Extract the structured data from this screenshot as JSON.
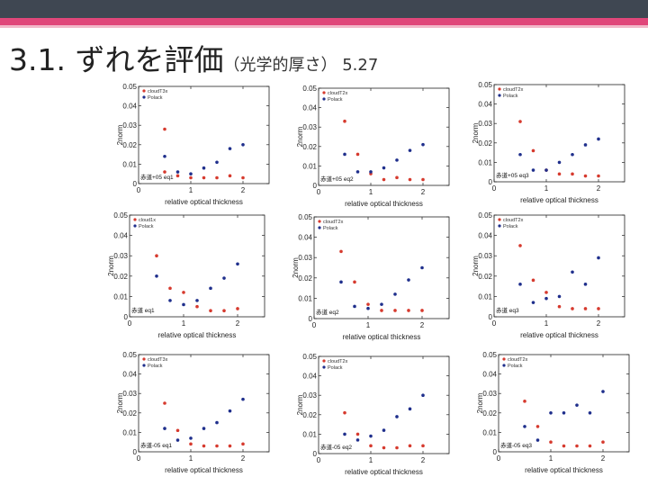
{
  "slide": {
    "title_main": "3.1. ずれを評価",
    "title_sub": "（光学的厚さ） 5.27"
  },
  "colors": {
    "red_series": "#d63a2e",
    "blue_series": "#1f2f8c",
    "header_dark": "#3f4752",
    "header_pink": "#e0477a"
  },
  "chart_data": [
    {
      "type": "scatter",
      "panel_label": "赤道+05 eq1",
      "xlabel": "relative optical thickness",
      "ylabel": "2norm",
      "xlim": [
        0,
        2.5
      ],
      "ylim": [
        0,
        0.05
      ],
      "xticks": [
        "0",
        "1",
        "2"
      ],
      "yticks": [
        "0",
        "0.01",
        "0.02",
        "0.03",
        "0.04",
        "0.05"
      ],
      "series": [
        {
          "name": "cloudT3x",
          "points": [
            [
              0.5,
              0.028
            ],
            [
              0.5,
              0.006
            ],
            [
              0.75,
              0.004
            ],
            [
              1.0,
              0.003
            ],
            [
              1.25,
              0.003
            ],
            [
              1.5,
              0.003
            ],
            [
              1.75,
              0.004
            ],
            [
              2.0,
              0.003
            ]
          ]
        },
        {
          "name": "Polack",
          "points": [
            [
              0.5,
              0.014
            ],
            [
              0.75,
              0.006
            ],
            [
              1.0,
              0.005
            ],
            [
              1.25,
              0.008
            ],
            [
              1.5,
              0.011
            ],
            [
              1.75,
              0.018
            ],
            [
              2.0,
              0.02
            ]
          ]
        }
      ]
    },
    {
      "type": "scatter",
      "panel_label": "赤道+05 eq2",
      "xlabel": "relative optical thickness",
      "ylabel": "2norm",
      "xlim": [
        0,
        2.5
      ],
      "ylim": [
        0,
        0.05
      ],
      "xticks": [
        "0",
        "1",
        "2"
      ],
      "yticks": [
        "0",
        "0.01",
        "0.02",
        "0.03",
        "0.04",
        "0.05"
      ],
      "series": [
        {
          "name": "cloudT2x",
          "points": [
            [
              0.5,
              0.033
            ],
            [
              0.75,
              0.016
            ],
            [
              1.0,
              0.006
            ],
            [
              1.25,
              0.003
            ],
            [
              1.5,
              0.004
            ],
            [
              1.75,
              0.003
            ],
            [
              2.0,
              0.003
            ]
          ]
        },
        {
          "name": "Polack",
          "points": [
            [
              0.5,
              0.016
            ],
            [
              0.75,
              0.007
            ],
            [
              1.0,
              0.007
            ],
            [
              1.25,
              0.009
            ],
            [
              1.5,
              0.013
            ],
            [
              1.75,
              0.018
            ],
            [
              2.0,
              0.021
            ]
          ]
        }
      ]
    },
    {
      "type": "scatter",
      "panel_label": "赤道+05 eq3",
      "xlabel": "relative optical thickness",
      "ylabel": "2norm",
      "xlim": [
        0,
        2.5
      ],
      "ylim": [
        0,
        0.05
      ],
      "xticks": [
        "0",
        "1",
        "2"
      ],
      "yticks": [
        "0",
        "0.01",
        "0.02",
        "0.03",
        "0.04",
        "0.05"
      ],
      "series": [
        {
          "name": "cloudT2x",
          "points": [
            [
              0.5,
              0.031
            ],
            [
              0.75,
              0.016
            ],
            [
              1.0,
              0.006
            ],
            [
              1.25,
              0.004
            ],
            [
              1.5,
              0.004
            ],
            [
              1.75,
              0.003
            ],
            [
              2.0,
              0.003
            ]
          ]
        },
        {
          "name": "Polack",
          "points": [
            [
              0.5,
              0.014
            ],
            [
              0.75,
              0.006
            ],
            [
              1.0,
              0.006
            ],
            [
              1.25,
              0.01
            ],
            [
              1.5,
              0.014
            ],
            [
              1.75,
              0.019
            ],
            [
              2.0,
              0.022
            ]
          ]
        }
      ]
    },
    {
      "type": "scatter",
      "panel_label": "赤道 eq1",
      "xlabel": "relative optical thickness",
      "ylabel": "2norm",
      "xlim": [
        0,
        2.5
      ],
      "ylim": [
        0,
        0.05
      ],
      "xticks": [
        "0",
        "1",
        "2"
      ],
      "yticks": [
        "0",
        "0.01",
        "0.02",
        "0.03",
        "0.04",
        "0.05"
      ],
      "series": [
        {
          "name": "cloud1x",
          "points": [
            [
              0.5,
              0.03
            ],
            [
              0.75,
              0.014
            ],
            [
              1.0,
              0.012
            ],
            [
              1.25,
              0.005
            ],
            [
              1.5,
              0.003
            ],
            [
              1.75,
              0.003
            ],
            [
              2.0,
              0.004
            ]
          ]
        },
        {
          "name": "Polack",
          "points": [
            [
              0.5,
              0.02
            ],
            [
              0.75,
              0.008
            ],
            [
              1.0,
              0.006
            ],
            [
              1.25,
              0.008
            ],
            [
              1.5,
              0.014
            ],
            [
              1.75,
              0.019
            ],
            [
              2.0,
              0.026
            ]
          ]
        }
      ]
    },
    {
      "type": "scatter",
      "panel_label": "赤道 eq2",
      "xlabel": "relative optical thickness",
      "ylabel": "2norm",
      "xlim": [
        0,
        2.5
      ],
      "ylim": [
        0,
        0.05
      ],
      "xticks": [
        "0",
        "1",
        "2"
      ],
      "yticks": [
        "0",
        "0.01",
        "0.02",
        "0.03",
        "0.04",
        "0.05"
      ],
      "series": [
        {
          "name": "cloudT2x",
          "points": [
            [
              0.5,
              0.033
            ],
            [
              0.75,
              0.018
            ],
            [
              1.0,
              0.007
            ],
            [
              1.25,
              0.004
            ],
            [
              1.5,
              0.004
            ],
            [
              1.75,
              0.004
            ],
            [
              2.0,
              0.004
            ]
          ]
        },
        {
          "name": "Polack",
          "points": [
            [
              0.5,
              0.018
            ],
            [
              0.75,
              0.006
            ],
            [
              1.0,
              0.005
            ],
            [
              1.25,
              0.007
            ],
            [
              1.5,
              0.012
            ],
            [
              1.75,
              0.019
            ],
            [
              2.0,
              0.025
            ]
          ]
        }
      ]
    },
    {
      "type": "scatter",
      "panel_label": "赤道 eq3",
      "xlabel": "relative optical thickness",
      "ylabel": "2norm",
      "xlim": [
        0,
        2.5
      ],
      "ylim": [
        0,
        0.05
      ],
      "xticks": [
        "0",
        "1",
        "2"
      ],
      "yticks": [
        "0",
        "0.01",
        "0.02",
        "0.03",
        "0.04",
        "0.05"
      ],
      "series": [
        {
          "name": "cloudT2x",
          "points": [
            [
              0.5,
              0.035
            ],
            [
              0.75,
              0.018
            ],
            [
              1.0,
              0.012
            ],
            [
              1.25,
              0.005
            ],
            [
              1.5,
              0.004
            ],
            [
              1.75,
              0.004
            ],
            [
              2.0,
              0.004
            ]
          ]
        },
        {
          "name": "Polack",
          "points": [
            [
              0.5,
              0.016
            ],
            [
              0.75,
              0.007
            ],
            [
              1.0,
              0.009
            ],
            [
              1.25,
              0.01
            ],
            [
              1.5,
              0.022
            ],
            [
              1.75,
              0.016
            ],
            [
              2.0,
              0.029
            ]
          ]
        }
      ]
    },
    {
      "type": "scatter",
      "panel_label": "赤道-05 eq1",
      "xlabel": "relative optical thickness",
      "ylabel": "2norm",
      "xlim": [
        0,
        2.5
      ],
      "ylim": [
        0,
        0.05
      ],
      "xticks": [
        "0",
        "1",
        "2"
      ],
      "yticks": [
        "0",
        "0.01",
        "0.02",
        "0.03",
        "0.04",
        "0.05"
      ],
      "series": [
        {
          "name": "cloudT3x",
          "points": [
            [
              0.5,
              0.025
            ],
            [
              0.75,
              0.011
            ],
            [
              1.0,
              0.004
            ],
            [
              1.25,
              0.003
            ],
            [
              1.5,
              0.003
            ],
            [
              1.75,
              0.003
            ],
            [
              2.0,
              0.004
            ]
          ]
        },
        {
          "name": "Polack",
          "points": [
            [
              0.5,
              0.012
            ],
            [
              0.75,
              0.006
            ],
            [
              1.0,
              0.007
            ],
            [
              1.25,
              0.012
            ],
            [
              1.5,
              0.015
            ],
            [
              1.75,
              0.021
            ],
            [
              2.0,
              0.027
            ]
          ]
        }
      ]
    },
    {
      "type": "scatter",
      "panel_label": "赤道-05 eq2",
      "xlabel": "relative optical thickness",
      "ylabel": "2norm",
      "xlim": [
        0,
        2.5
      ],
      "ylim": [
        0,
        0.05
      ],
      "xticks": [
        "0",
        "1",
        "2"
      ],
      "yticks": [
        "0",
        "0.01",
        "0.02",
        "0.03",
        "0.04",
        "0.05"
      ],
      "series": [
        {
          "name": "cloudT2x",
          "points": [
            [
              0.5,
              0.021
            ],
            [
              0.75,
              0.01
            ],
            [
              1.0,
              0.004
            ],
            [
              1.25,
              0.003
            ],
            [
              1.5,
              0.003
            ],
            [
              1.75,
              0.004
            ],
            [
              2.0,
              0.004
            ]
          ]
        },
        {
          "name": "Polack",
          "points": [
            [
              0.5,
              0.01
            ],
            [
              0.75,
              0.007
            ],
            [
              1.0,
              0.009
            ],
            [
              1.25,
              0.012
            ],
            [
              1.5,
              0.019
            ],
            [
              1.75,
              0.023
            ],
            [
              2.0,
              0.03
            ]
          ]
        }
      ]
    },
    {
      "type": "scatter",
      "panel_label": "赤道-05 eq3",
      "xlabel": "relative optical thickness",
      "ylabel": "2norm",
      "xlim": [
        0,
        2.5
      ],
      "ylim": [
        0,
        0.05
      ],
      "xticks": [
        "0",
        "1",
        "2"
      ],
      "yticks": [
        "0",
        "0.01",
        "0.02",
        "0.03",
        "0.04",
        "0.05"
      ],
      "series": [
        {
          "name": "cloudT2x",
          "points": [
            [
              0.5,
              0.026
            ],
            [
              0.75,
              0.013
            ],
            [
              1.0,
              0.005
            ],
            [
              1.25,
              0.003
            ],
            [
              1.5,
              0.003
            ],
            [
              1.75,
              0.003
            ],
            [
              2.0,
              0.005
            ]
          ]
        },
        {
          "name": "Polack",
          "points": [
            [
              0.5,
              0.013
            ],
            [
              0.75,
              0.006
            ],
            [
              1.0,
              0.02
            ],
            [
              1.25,
              0.02
            ],
            [
              1.5,
              0.024
            ],
            [
              1.75,
              0.02
            ],
            [
              2.0,
              0.031
            ]
          ]
        }
      ]
    }
  ]
}
